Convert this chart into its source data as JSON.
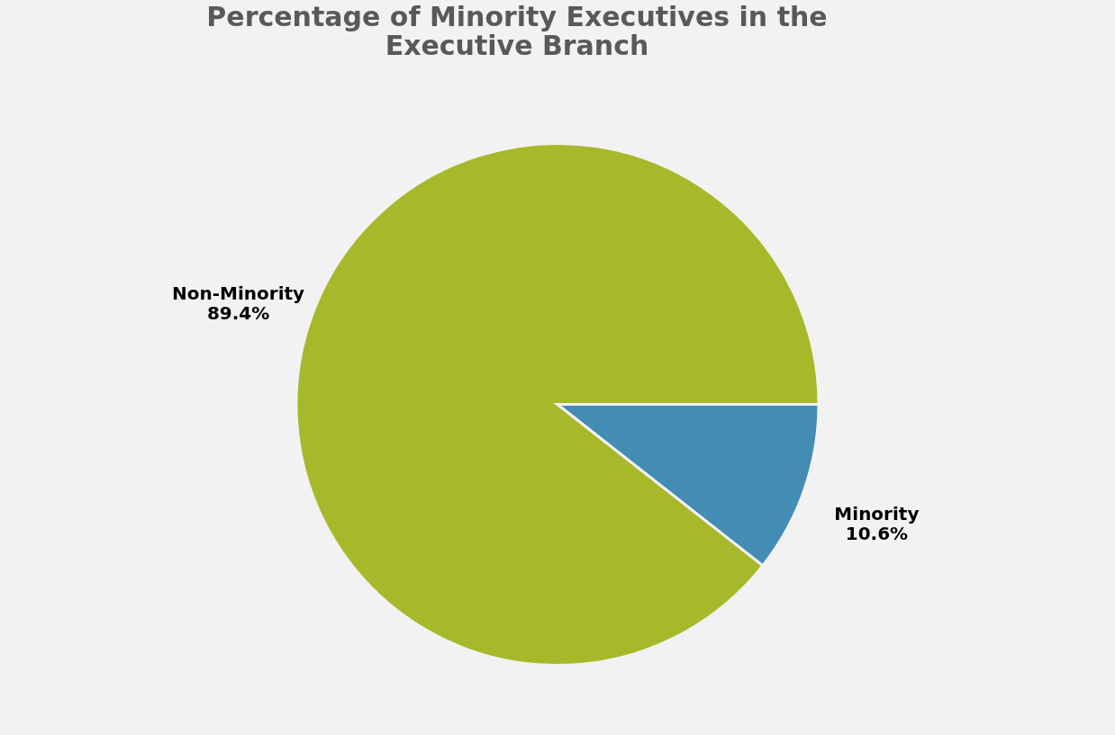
{
  "chart_data": {
    "type": "pie",
    "title": "Percentage of Minority Executives in the Executive Branch",
    "categories": [
      "Non-Minority",
      "Minority"
    ],
    "values": [
      89.4,
      10.6
    ],
    "colors": [
      "#a7b92a",
      "#438cb4"
    ],
    "value_labels": [
      "89.4%",
      "10.6%"
    ],
    "legend": false
  }
}
